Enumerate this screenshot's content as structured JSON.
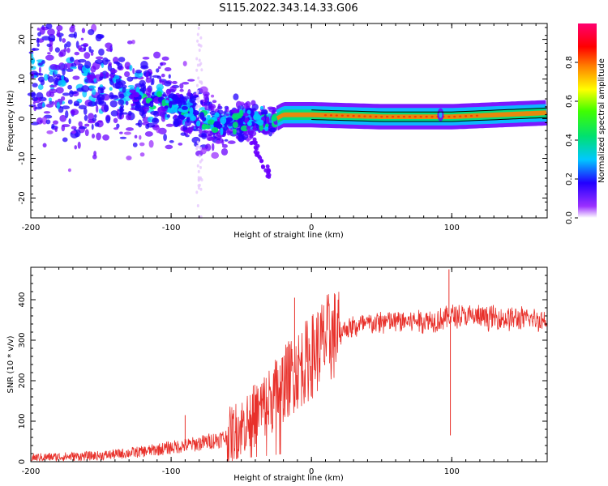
{
  "title": "S115.2022.343.14.33.G06",
  "chart_data": [
    {
      "type": "heatmap",
      "xlabel": "Height of straight line (km)",
      "ylabel": "Frequency (Hz)",
      "xlim": [
        -200,
        168
      ],
      "ylim": [
        -25,
        24
      ],
      "x_ticks": [
        -200,
        -100,
        0,
        100
      ],
      "y_ticks": [
        -20,
        -10,
        0,
        10,
        20
      ],
      "colorbar": {
        "label": "Normalized spectral amplitude",
        "range": [
          0,
          1
        ],
        "ticks": [
          "0.0",
          "0.2",
          "0.4",
          "0.6",
          "0.8"
        ],
        "colormap": [
          "#ffffff",
          "#7b00ff",
          "#0000ff",
          "#00e5ff",
          "#00ff00",
          "#ffff00",
          "#ff8000",
          "#ff0000",
          "#ff0066"
        ]
      },
      "ridge": [
        {
          "x": -200,
          "y": 12
        },
        {
          "x": -150,
          "y": 8
        },
        {
          "x": -100,
          "y": 4
        },
        {
          "x": -75,
          "y": -1
        },
        {
          "x": -50,
          "y": 0
        },
        {
          "x": -30,
          "y": -1
        },
        {
          "x": -20,
          "y": 1
        },
        {
          "x": 0,
          "y": 1
        },
        {
          "x": 50,
          "y": 0.5
        },
        {
          "x": 100,
          "y": 0.5
        },
        {
          "x": 168,
          "y": 1.5
        }
      ]
    },
    {
      "type": "line",
      "xlabel": "Height of straight line (km)",
      "ylabel": "SNR (10 * v/v)",
      "xlim": [
        -200,
        168
      ],
      "ylim": [
        0,
        480
      ],
      "x_ticks": [
        -200,
        -100,
        0,
        100
      ],
      "y_ticks": [
        0,
        100,
        200,
        300,
        400
      ],
      "series": [
        {
          "color": "#e8302a",
          "envelope": [
            {
              "x": -200,
              "y": 10
            },
            {
              "x": -150,
              "y": 15
            },
            {
              "x": -120,
              "y": 25
            },
            {
              "x": -100,
              "y": 35
            },
            {
              "x": -80,
              "y": 45
            },
            {
              "x": -60,
              "y": 60
            },
            {
              "x": -45,
              "y": 100
            },
            {
              "x": -30,
              "y": 150
            },
            {
              "x": -15,
              "y": 210
            },
            {
              "x": 0,
              "y": 260
            },
            {
              "x": 10,
              "y": 300
            },
            {
              "x": 25,
              "y": 330
            },
            {
              "x": 50,
              "y": 345
            },
            {
              "x": 90,
              "y": 350
            },
            {
              "x": 100,
              "y": 360
            },
            {
              "x": 130,
              "y": 355
            },
            {
              "x": 168,
              "y": 350
            }
          ],
          "spikes": [
            {
              "x": -12,
              "y": 405
            },
            {
              "x": 98,
              "y": 475
            },
            {
              "x": 99,
              "y": 65
            },
            {
              "x": -90,
              "y": 115
            }
          ]
        }
      ]
    }
  ]
}
